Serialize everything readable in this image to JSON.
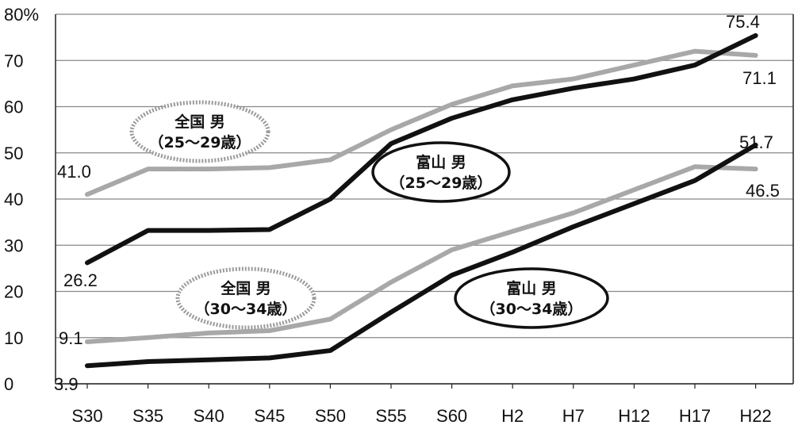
{
  "chart_data": {
    "type": "line",
    "categories": [
      "S30",
      "S35",
      "S40",
      "S45",
      "S50",
      "S55",
      "S60",
      "H2",
      "H7",
      "H12",
      "H17",
      "H22"
    ],
    "ylim": [
      0,
      80
    ],
    "yticks": [
      "0",
      "10",
      "20",
      "30",
      "40",
      "50",
      "60",
      "70",
      "80%"
    ],
    "grid": "horizontal",
    "series": [
      {
        "name_line1": "全国 男",
        "name_line2": "（25～29歳）",
        "style": "dotted-gray",
        "values": [
          41.0,
          46.5,
          46.5,
          46.8,
          48.5,
          55.0,
          60.5,
          64.5,
          66.0,
          69.0,
          72.0,
          71.1
        ],
        "labels": {
          "first": "41.0",
          "last": "71.1"
        }
      },
      {
        "name_line1": "富山 男",
        "name_line2": "（25～29歳）",
        "style": "solid-black",
        "values": [
          26.2,
          33.2,
          33.2,
          33.4,
          40.0,
          52.0,
          57.5,
          61.5,
          64.0,
          66.0,
          69.0,
          75.4
        ],
        "labels": {
          "first": "26.2",
          "last": "75.4"
        }
      },
      {
        "name_line1": "全国 男",
        "name_line2": "（30～34歳）",
        "style": "dotted-gray",
        "values": [
          9.1,
          10.0,
          11.0,
          11.5,
          14.0,
          22.0,
          29.0,
          33.0,
          37.0,
          42.0,
          47.0,
          46.5
        ],
        "labels": {
          "first": "9.1",
          "last": "46.5"
        }
      },
      {
        "name_line1": "富山 男",
        "name_line2": "（30～34歳）",
        "style": "solid-black",
        "values": [
          3.9,
          4.8,
          5.2,
          5.6,
          7.2,
          15.5,
          23.5,
          28.5,
          34.0,
          39.0,
          44.0,
          51.7
        ],
        "labels": {
          "first": "3.9",
          "last": "51.7"
        }
      }
    ],
    "colors": {
      "solid": "#111111",
      "dotted": "#a8a8a8",
      "grid": "#888888"
    }
  }
}
